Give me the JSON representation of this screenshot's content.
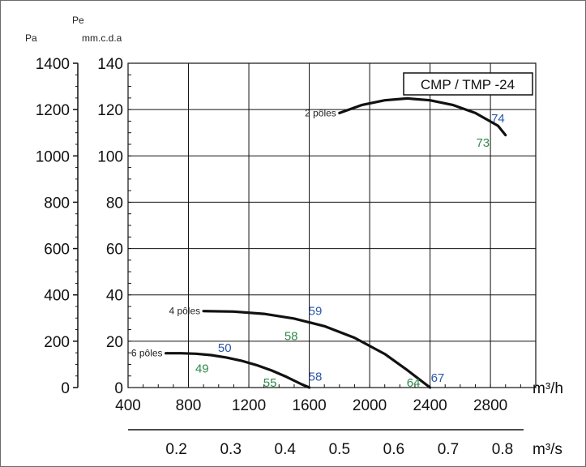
{
  "chart_data": {
    "type": "line",
    "title": "CMP / TMP -24",
    "y_axes": {
      "left_outer": {
        "unit_top": "",
        "unit": "Pa",
        "ticks": [
          "0",
          "200",
          "400",
          "600",
          "800",
          "1000",
          "1200",
          "1400"
        ],
        "range": [
          0,
          1400
        ]
      },
      "left_inner": {
        "unit_top": "Pe",
        "unit": "mm.c.d.a",
        "ticks": [
          "0",
          "20",
          "40",
          "60",
          "80",
          "100",
          "120",
          "140"
        ],
        "range": [
          0,
          140
        ]
      }
    },
    "x_axes": {
      "primary": {
        "unit": "m³/h",
        "ticks": [
          "400",
          "800",
          "1200",
          "1600",
          "2000",
          "2400",
          "2800"
        ],
        "range": [
          400,
          3100
        ]
      },
      "secondary": {
        "unit": "m³/s",
        "ticks": [
          "0.2",
          "0.3",
          "0.4",
          "0.5",
          "0.6",
          "0.7",
          "0.8"
        ]
      }
    },
    "grid": true,
    "series": [
      {
        "name": "2 pôles",
        "x": [
          1800,
          1950,
          2100,
          2250,
          2400,
          2550,
          2700,
          2850,
          2900
        ],
        "y": [
          1185,
          1220,
          1240,
          1248,
          1240,
          1220,
          1185,
          1130,
          1090
        ],
        "annotations": [
          {
            "text": "74",
            "x": 2850,
            "y": 1165,
            "color": "blue"
          },
          {
            "text": "73",
            "x": 2750,
            "y": 1060,
            "color": "green"
          }
        ]
      },
      {
        "name": "4 pôles",
        "x": [
          900,
          1100,
          1300,
          1500,
          1700,
          1900,
          2100,
          2250,
          2400
        ],
        "y": [
          330,
          328,
          318,
          298,
          265,
          215,
          145,
          75,
          0
        ],
        "annotations": [
          {
            "text": "59",
            "x": 1640,
            "y": 335,
            "color": "blue"
          },
          {
            "text": "58",
            "x": 1480,
            "y": 225,
            "color": "green"
          },
          {
            "text": "67",
            "x": 2450,
            "y": 45,
            "color": "blue"
          },
          {
            "text": "64",
            "x": 2290,
            "y": 25,
            "color": "green"
          }
        ]
      },
      {
        "name": "6 pôles",
        "x": [
          650,
          750,
          850,
          950,
          1050,
          1150,
          1250,
          1350,
          1450,
          1550,
          1600
        ],
        "y": [
          148,
          148,
          146,
          140,
          130,
          116,
          97,
          74,
          46,
          14,
          0
        ],
        "annotations": [
          {
            "text": "50",
            "x": 1040,
            "y": 175,
            "color": "blue"
          },
          {
            "text": "49",
            "x": 890,
            "y": 85,
            "color": "green"
          },
          {
            "text": "58",
            "x": 1640,
            "y": 50,
            "color": "blue"
          },
          {
            "text": "55",
            "x": 1340,
            "y": 25,
            "color": "green"
          }
        ]
      }
    ],
    "colors": {
      "blue": "#2b56a8",
      "green": "#2f8a4a",
      "curve": "#111111",
      "grid": "#000000"
    }
  }
}
